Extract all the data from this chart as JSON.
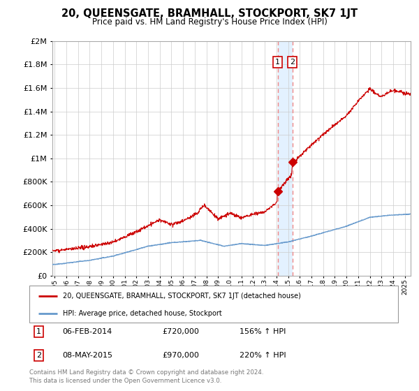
{
  "title": "20, QUEENSGATE, BRAMHALL, STOCKPORT, SK7 1JT",
  "subtitle": "Price paid vs. HM Land Registry's House Price Index (HPI)",
  "sale1_date": 2014.1,
  "sale1_price": 720000,
  "sale1_display": "06-FEB-2014",
  "sale1_pct": "156%",
  "sale2_date": 2015.36,
  "sale2_price": 970000,
  "sale2_display": "08-MAY-2015",
  "sale2_pct": "220%",
  "red_line_color": "#cc0000",
  "blue_line_color": "#6699cc",
  "dashed_line_color": "#ee8888",
  "shade_color": "#ddeeff",
  "legend_line1": "20, QUEENSGATE, BRAMHALL, STOCKPORT, SK7 1JT (detached house)",
  "legend_line2": "HPI: Average price, detached house, Stockport",
  "footer1": "Contains HM Land Registry data © Crown copyright and database right 2024.",
  "footer2": "This data is licensed under the Open Government Licence v3.0.",
  "ylim_max": 2000000,
  "xlim_start": 1994.8,
  "xlim_end": 2025.5
}
